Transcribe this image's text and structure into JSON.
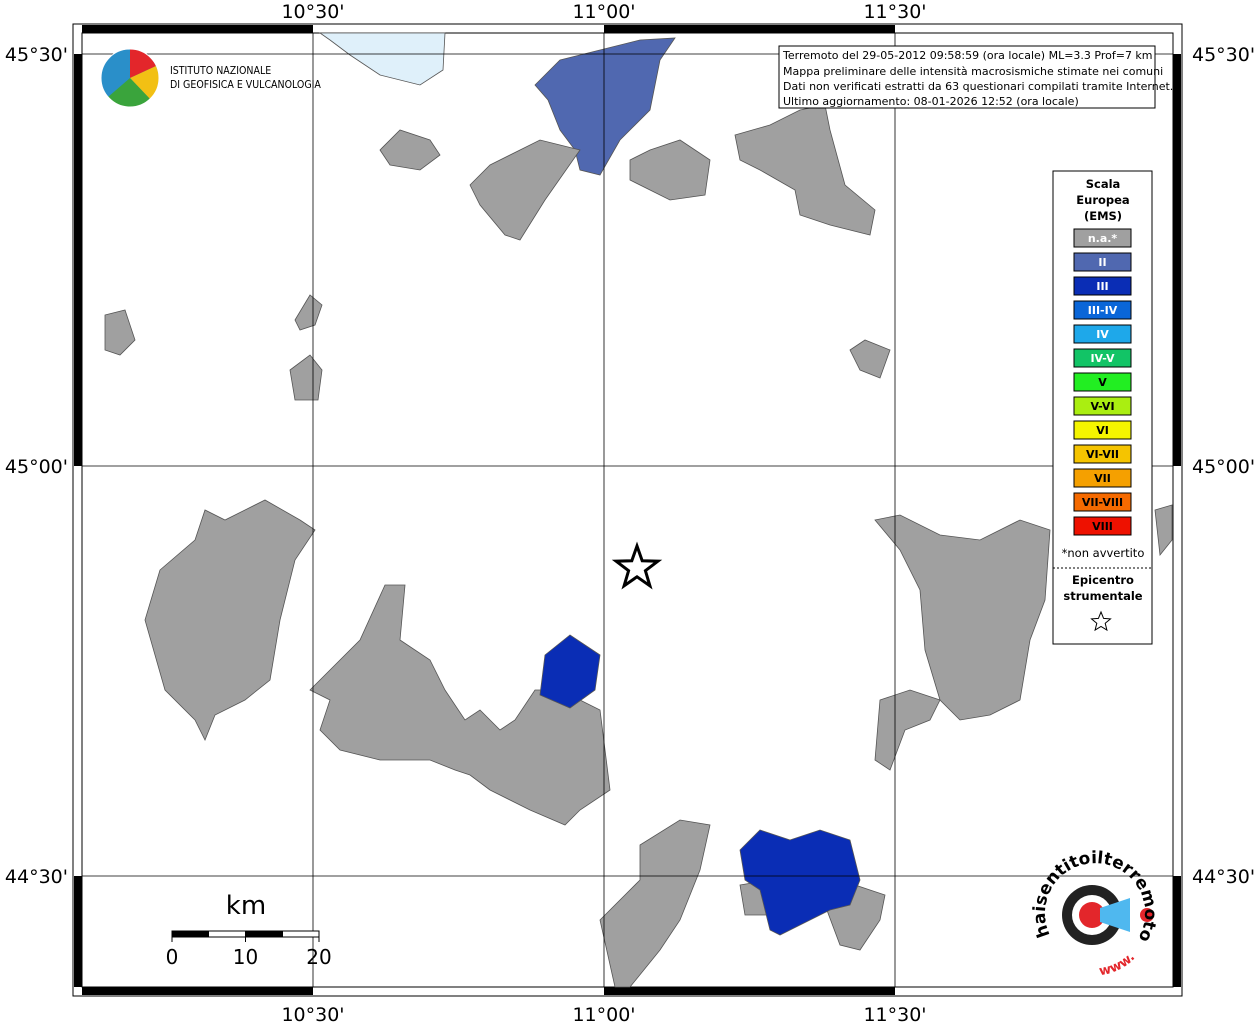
{
  "map": {
    "x_labels": [
      "10°30'",
      "11°00'",
      "11°30'"
    ],
    "y_labels": [
      "45°30'",
      "45°00'",
      "44°30'"
    ],
    "info_lines": [
      "Terremoto del 29-05-2012 09:58:59 (ora locale) ML=3.3 Prof=7 km",
      "Mappa preliminare delle intensità macrosismiche stimate nei comuni",
      "Dati non verificati estratti da 63 questionari compilati tramite Internet.",
      "Ultimo aggiornamento: 08-01-2026 12:52 (ora locale)"
    ],
    "institute": [
      "ISTITUTO NAZIONALE",
      "DI GEOFISICA E VULCANOLOGIA"
    ],
    "legend": {
      "title": [
        "Scala",
        "Europea",
        "(EMS)"
      ],
      "items": [
        {
          "label": "n.a.*",
          "color": "#a0a0a0"
        },
        {
          "label": "II",
          "color": "#5068b0"
        },
        {
          "label": "III",
          "color": "#0a2db5"
        },
        {
          "label": "III-IV",
          "color": "#0a66d8"
        },
        {
          "label": "IV",
          "color": "#1ea8ea"
        },
        {
          "label": "IV-V",
          "color": "#12c466"
        },
        {
          "label": "V",
          "color": "#22ee22"
        },
        {
          "label": "V-VI",
          "color": "#aaee11"
        },
        {
          "label": "VI",
          "color": "#f5f500"
        },
        {
          "label": "VI-VII",
          "color": "#f5c400"
        },
        {
          "label": "VII",
          "color": "#f5a000"
        },
        {
          "label": "VII-VIII",
          "color": "#f56a00"
        },
        {
          "label": "VIII",
          "color": "#ee1100"
        }
      ],
      "note": "*non avvertito",
      "epicenter": [
        "Epicentro",
        "strumentale"
      ]
    },
    "scale": {
      "unit": "km",
      "ticks": [
        0,
        10,
        20
      ]
    },
    "site_logo": {
      "name": "haisentitoilterremoto.it",
      "prefix": "www."
    }
  }
}
